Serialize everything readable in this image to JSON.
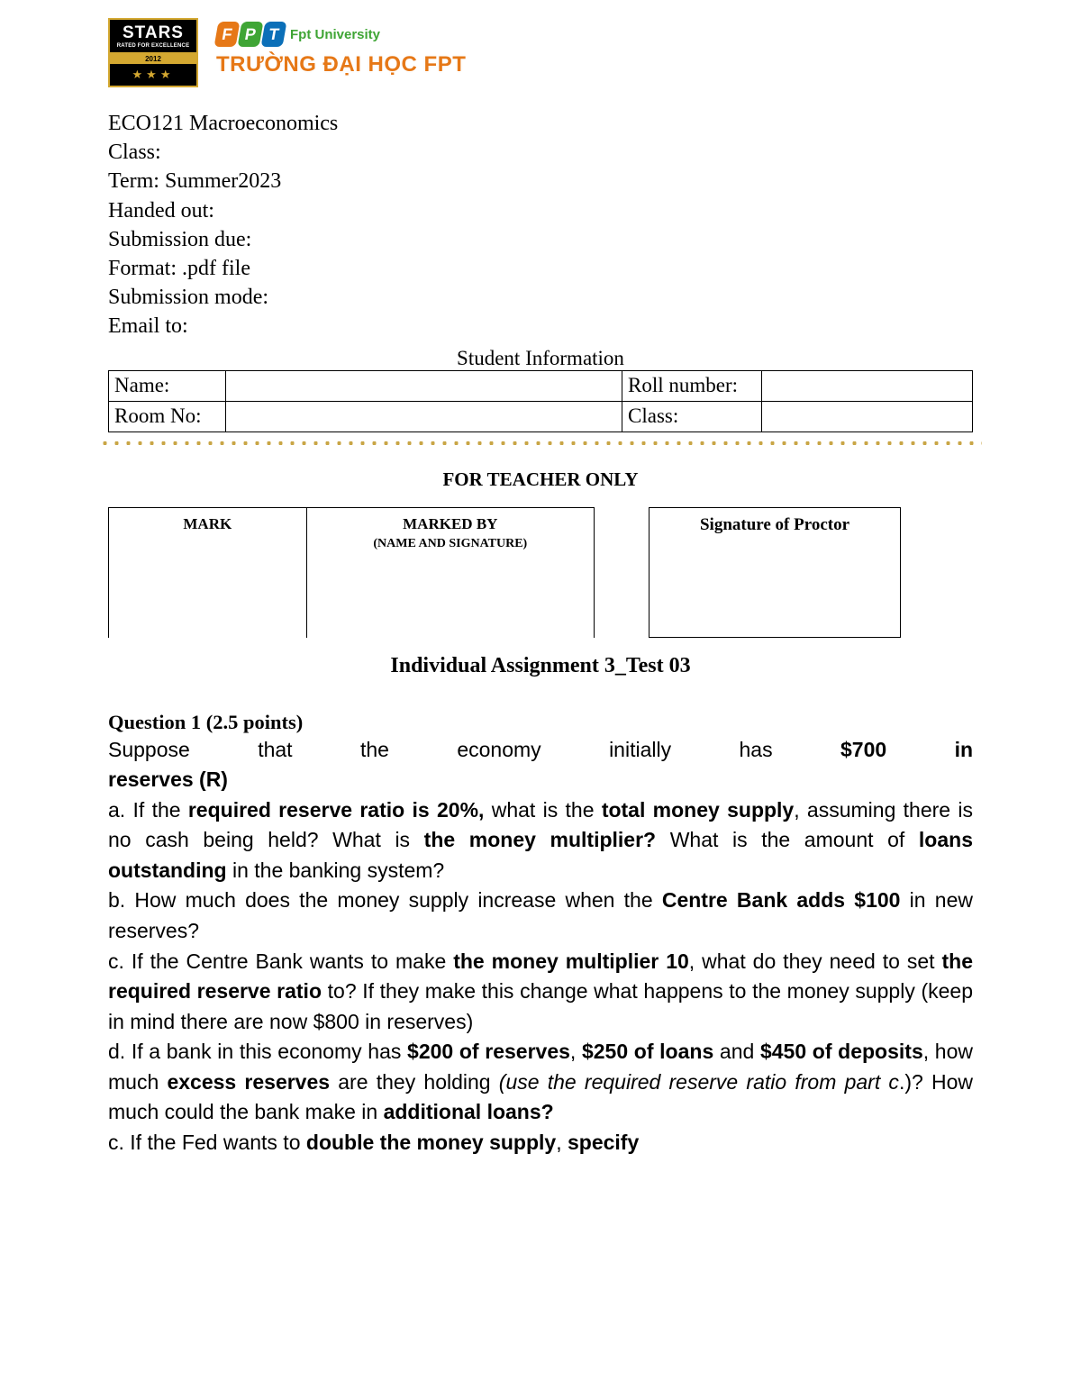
{
  "logo": {
    "stars_main": "STARS",
    "stars_sub": "RATED FOR EXCELLENCE",
    "stars_year": "2012",
    "fpt_uni": "Fpt University",
    "truong": "TRƯỜNG ĐẠI HỌC FPT"
  },
  "meta": {
    "course": "ECO121 Macroeconomics",
    "class_label": "Class:",
    "term": "Term: Summer2023",
    "handed_out": "Handed out:",
    "submission_due": "Submission due:",
    "format": "Format: .pdf file",
    "submission_mode": "Submission mode:",
    "email_to": "Email to:"
  },
  "student_info": {
    "title": "Student Information",
    "name_label": "Name:",
    "roll_label": "Roll number:",
    "room_label": "Room No:",
    "class_label": "Class:"
  },
  "teacher": {
    "header": "FOR TEACHER ONLY",
    "mark": "MARK",
    "marked_by": "MARKED BY",
    "marked_by_sub": "(NAME AND SIGNATURE)",
    "proctor": "Signature of Proctor"
  },
  "assignment_title": "Individual Assignment 3_Test 03",
  "q1": {
    "head": "Question 1 (2.5 points)",
    "intro_1": "Suppose that the economy initially has ",
    "intro_b1": "$700 in",
    "intro_b2": "reserves (R)",
    "a_1": "a. If the ",
    "a_b1": "required reserve ratio is 20%,",
    "a_2": " what is the ",
    "a_b2": "total money supply",
    "a_3": ", assuming there is no cash being held? What is ",
    "a_b3": "the money multiplier?",
    "a_4": " What is the amount of ",
    "a_b4": "loans outstanding",
    "a_5": " in the banking system?",
    "b_1": "b. How much does the money supply increase when the ",
    "b_b1": "Centre Bank adds $100",
    "b_2": " in new reserves?",
    "c_1": "c. If the Centre Bank wants to make ",
    "c_b1": "the money multiplier 10",
    "c_2": ", what do they need to set ",
    "c_b2": "the required reserve ratio",
    "c_3": " to? If they make this change what happens to the money supply (keep in mind there are now $800 in reserves)",
    "d_1": "d. If a bank in this economy has ",
    "d_b1": "$200 of reserves",
    "d_2": ", ",
    "d_b2": "$250 of loans",
    "d_3": " and ",
    "d_b3": "$450 of deposits",
    "d_4": ", how much ",
    "d_b4": "excess reserves",
    "d_5": " are they holding ",
    "d_i1": "(use the required reserve ratio from part c",
    "d_6": ".)? How much could the bank make in ",
    "d_b5": "additional loans?",
    "c2_1": "c. If the Fed wants to ",
    "c2_b1": "double the money supply",
    "c2_2": ", ",
    "c2_b2": "specify"
  }
}
